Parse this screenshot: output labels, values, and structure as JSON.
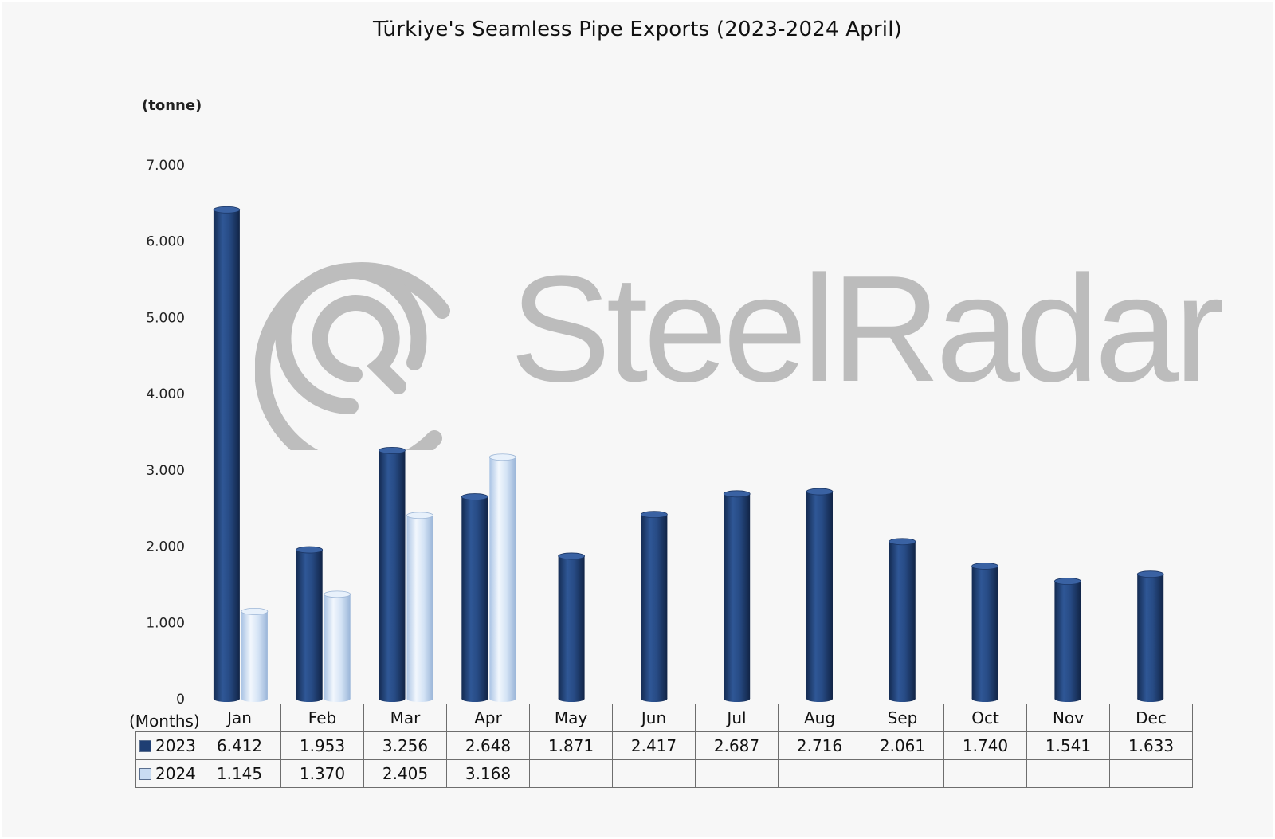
{
  "chart_data": {
    "type": "bar",
    "title": "Türkiye's Seamless Pipe Exports (2023-2024 April)",
    "unit_label": "(tonne)",
    "xlabel": "(Months)",
    "categories": [
      "Jan",
      "Feb",
      "Mar",
      "Apr",
      "May",
      "Jun",
      "Jul",
      "Aug",
      "Sep",
      "Oct",
      "Nov",
      "Dec"
    ],
    "series": [
      {
        "name": "2023",
        "color": "#1f3f73",
        "values": [
          6412,
          1953,
          3256,
          2648,
          1871,
          2417,
          2687,
          2716,
          2061,
          1740,
          1541,
          1633
        ],
        "labels": [
          "6.412",
          "1.953",
          "3.256",
          "2.648",
          "1.871",
          "2.417",
          "2.687",
          "2.716",
          "2.061",
          "1.740",
          "1.541",
          "1.633"
        ]
      },
      {
        "name": "2024",
        "color": "#c9dcf2",
        "values": [
          1145,
          1370,
          2405,
          3168,
          null,
          null,
          null,
          null,
          null,
          null,
          null,
          null
        ],
        "labels": [
          "1.145",
          "1.370",
          "2.405",
          "3.168",
          "",
          "",
          "",
          "",
          "",
          "",
          "",
          ""
        ]
      }
    ],
    "ylim": [
      0,
      7000
    ],
    "yticks": [
      {
        "value": 0,
        "label": "0"
      },
      {
        "value": 1000,
        "label": "1.000"
      },
      {
        "value": 2000,
        "label": "2.000"
      },
      {
        "value": 3000,
        "label": "3.000"
      },
      {
        "value": 4000,
        "label": "4.000"
      },
      {
        "value": 5000,
        "label": "5.000"
      },
      {
        "value": 6000,
        "label": "6.000"
      },
      {
        "value": 7000,
        "label": "7.000"
      }
    ],
    "grid": false,
    "legend": "data-table"
  },
  "watermark": {
    "text": "SteelRadar",
    "color": "#b9b9b9",
    "icon": "radar-target-icon"
  }
}
